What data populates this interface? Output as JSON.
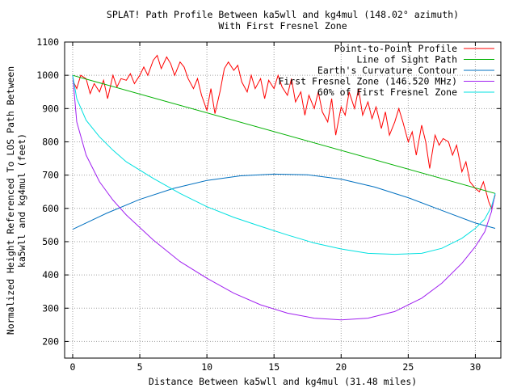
{
  "chart_data": {
    "type": "line",
    "title": "SPLAT! Path Profile Between ka5wll and kg4mul (148.02° azimuth)",
    "subtitle": "With First Fresnel Zone",
    "xlabel": "Distance Between ka5wll and kg4mul (31.48 miles)",
    "ylabel_line1": "Normalized Height Referenced To LOS Path Between",
    "ylabel_line2": "ka5wll and kg4mul (feet)",
    "xlim": [
      -0.6,
      31.9
    ],
    "ylim": [
      150,
      1100
    ],
    "xticks": [
      0,
      5,
      10,
      15,
      20,
      25,
      30
    ],
    "yticks": [
      200,
      300,
      400,
      500,
      600,
      700,
      800,
      900,
      1000,
      1100
    ],
    "grid": true,
    "legend_position": "top-right",
    "series": [
      {
        "name": "Point-to-Point Profile",
        "color": "#ff0000",
        "x": [
          0,
          0.3,
          0.6,
          1.0,
          1.3,
          1.6,
          2.0,
          2.3,
          2.6,
          3.0,
          3.3,
          3.6,
          4.0,
          4.3,
          4.6,
          5.0,
          5.3,
          5.6,
          6.0,
          6.3,
          6.6,
          7.0,
          7.3,
          7.6,
          8.0,
          8.3,
          8.6,
          9.0,
          9.3,
          9.6,
          10.0,
          10.3,
          10.6,
          11.0,
          11.3,
          11.6,
          12.0,
          12.3,
          12.6,
          13.0,
          13.3,
          13.6,
          14.0,
          14.3,
          14.6,
          15.0,
          15.3,
          15.6,
          16.0,
          16.3,
          16.6,
          17.0,
          17.3,
          17.6,
          18.0,
          18.3,
          18.6,
          19.0,
          19.3,
          19.6,
          20.0,
          20.3,
          20.6,
          21.0,
          21.3,
          21.6,
          22.0,
          22.3,
          22.6,
          23.0,
          23.3,
          23.6,
          24.0,
          24.3,
          24.6,
          25.0,
          25.3,
          25.6,
          26.0,
          26.3,
          26.6,
          27.0,
          27.3,
          27.6,
          28.0,
          28.3,
          28.6,
          29.0,
          29.3,
          29.6,
          30.0,
          30.3,
          30.6,
          31.0,
          31.2,
          31.48
        ],
        "y": [
          985,
          960,
          1000,
          990,
          945,
          975,
          950,
          985,
          930,
          1000,
          965,
          990,
          985,
          1005,
          975,
          1000,
          1025,
          1000,
          1045,
          1060,
          1020,
          1055,
          1035,
          1000,
          1040,
          1025,
          990,
          960,
          990,
          940,
          895,
          960,
          885,
          955,
          1020,
          1040,
          1015,
          1030,
          980,
          950,
          1000,
          960,
          990,
          930,
          985,
          960,
          1000,
          965,
          940,
          990,
          920,
          950,
          880,
          940,
          900,
          950,
          890,
          860,
          930,
          820,
          905,
          880,
          950,
          900,
          960,
          880,
          920,
          870,
          905,
          840,
          890,
          820,
          860,
          900,
          860,
          800,
          830,
          760,
          850,
          800,
          720,
          820,
          790,
          810,
          800,
          760,
          790,
          710,
          740,
          680,
          660,
          650,
          680,
          620,
          600,
          640
        ]
      },
      {
        "name": "Line of Sight Path",
        "color": "#00b000",
        "x": [
          0,
          31.48
        ],
        "y": [
          1000,
          645
        ]
      },
      {
        "name": "Earth's Curvature Contour",
        "color": "#0070c0",
        "x": [
          0,
          2.5,
          5,
          7.5,
          10,
          12.5,
          15,
          17.5,
          20,
          22.5,
          25,
          27.5,
          30,
          31.48
        ],
        "y": [
          537,
          585,
          627,
          660,
          684,
          698,
          703,
          701,
          688,
          664,
          632,
          594,
          556,
          540
        ]
      },
      {
        "name": "First Fresnel Zone (146.520 MHz)",
        "color": "#a020f0",
        "x": [
          0,
          0.3,
          1,
          2,
          3,
          4,
          6,
          8,
          10,
          12,
          14,
          16,
          18,
          20,
          22,
          24,
          26,
          27.5,
          29,
          30,
          30.7,
          31.2,
          31.48
        ],
        "y": [
          1000,
          860,
          760,
          680,
          625,
          580,
          505,
          440,
          390,
          345,
          310,
          285,
          270,
          265,
          270,
          290,
          330,
          375,
          435,
          485,
          530,
          590,
          645
        ]
      },
      {
        "name": "60% of First Fresnel Zone",
        "color": "#00e0e0",
        "x": [
          0,
          0.3,
          1,
          2,
          3,
          4,
          6,
          8,
          10,
          12,
          14,
          16,
          18,
          20,
          22,
          24,
          26,
          27.5,
          29,
          30,
          30.7,
          31.2,
          31.48
        ],
        "y": [
          1000,
          930,
          865,
          815,
          775,
          740,
          690,
          645,
          605,
          573,
          546,
          520,
          496,
          478,
          465,
          462,
          465,
          480,
          510,
          540,
          568,
          605,
          645
        ]
      }
    ]
  }
}
